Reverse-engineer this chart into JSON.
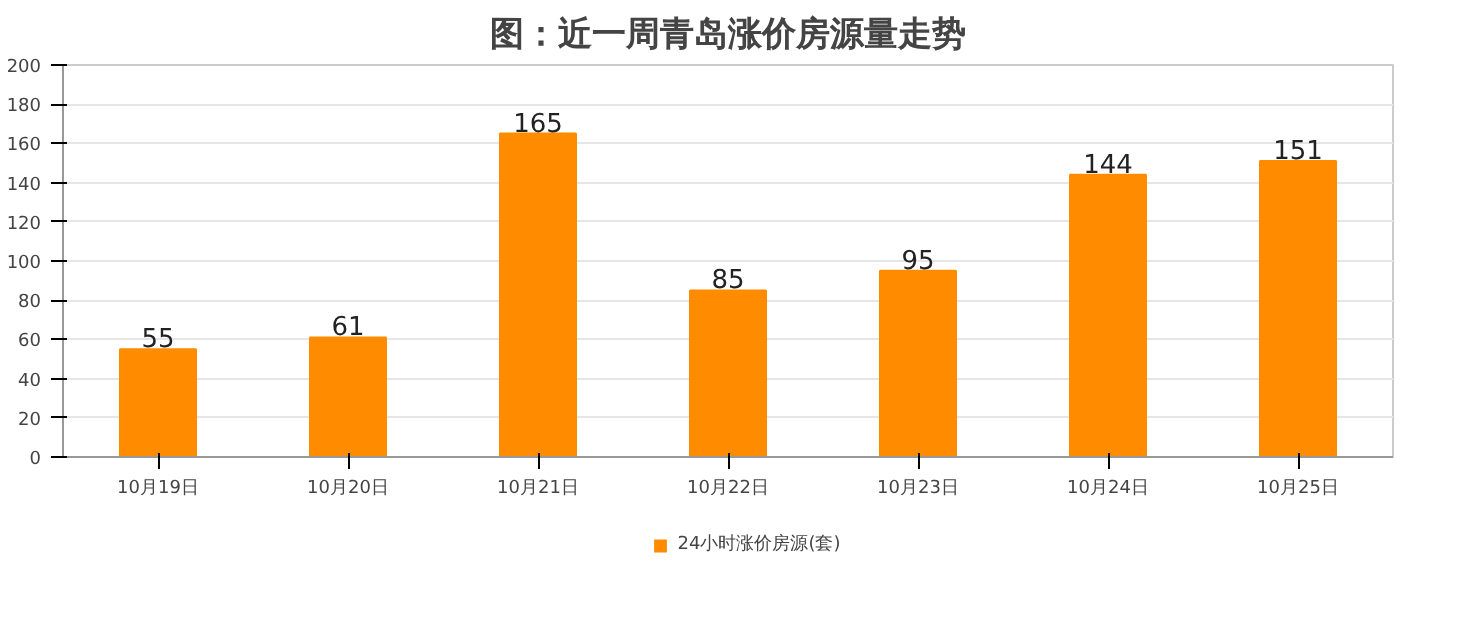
{
  "chart_data": {
    "type": "bar",
    "title": "图：近一周青岛涨价房源量走势",
    "categories": [
      "10月19日",
      "10月20日",
      "10月21日",
      "10月22日",
      "10月23日",
      "10月24日",
      "10月25日"
    ],
    "series": [
      {
        "name": "24小时涨价房源(套)",
        "color": "#ff8c00",
        "values": [
          55,
          61,
          165,
          85,
          95,
          144,
          151
        ]
      }
    ],
    "ylim": [
      0,
      200
    ],
    "yticks": [
      0,
      20,
      40,
      60,
      80,
      100,
      120,
      140,
      160,
      180,
      200
    ],
    "grid": "y",
    "legend": "bottom",
    "data_labels": true
  }
}
